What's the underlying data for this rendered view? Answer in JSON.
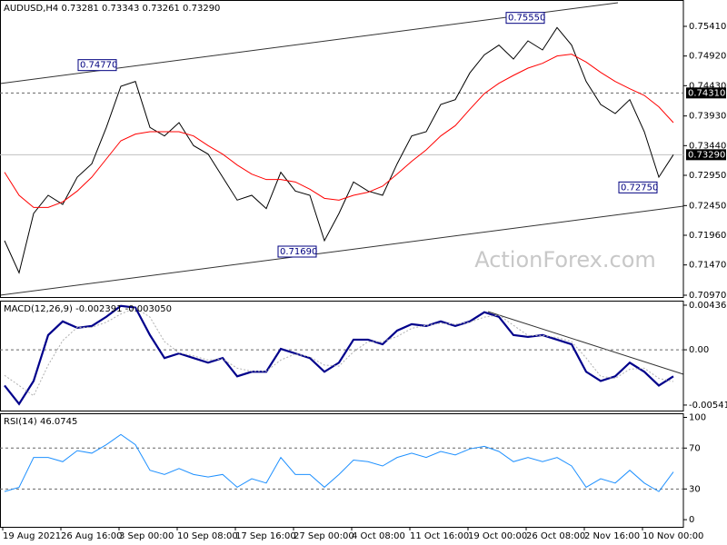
{
  "chart_data": [
    {
      "type": "line",
      "title": "AUDUSD,H4 0.73281 0.73343 0.73261 0.73290",
      "watermark": "ActionForex.com",
      "ylim": [
        0.7094,
        0.75845
      ],
      "yticks": [
        {
          "value": 0.7541,
          "label": "0.75410"
        },
        {
          "value": 0.7492,
          "label": "0.74920"
        },
        {
          "value": 0.7443,
          "label": "0.74430"
        },
        {
          "value": 0.7393,
          "label": "0.73930"
        },
        {
          "value": 0.7344,
          "label": "0.73440"
        },
        {
          "value": 0.7295,
          "label": "0.72950"
        },
        {
          "value": 0.7245,
          "label": "0.72450"
        },
        {
          "value": 0.7196,
          "label": "0.71960"
        },
        {
          "value": 0.7147,
          "label": "0.71470"
        },
        {
          "value": 0.7097,
          "label": "0.70970"
        }
      ],
      "levels": [
        {
          "value": 0.7431,
          "label": "0.74310"
        }
      ],
      "current": {
        "value": 0.7329,
        "label": "0.73290"
      },
      "annotations": [
        {
          "value": 0.7477,
          "label": "0.74770"
        },
        {
          "value": 0.7555,
          "label": "0.75550"
        },
        {
          "value": 0.7169,
          "label": "0.71690"
        },
        {
          "value": 0.7275,
          "label": "0.72750"
        }
      ],
      "series": [
        {
          "color": "#000000",
          "values": [
            0.7187,
            0.7134,
            0.7232,
            0.7262,
            0.7247,
            0.7292,
            0.7314,
            0.7374,
            0.7442,
            0.745,
            0.7374,
            0.736,
            0.7382,
            0.7344,
            0.733,
            0.7292,
            0.7254,
            0.7262,
            0.724,
            0.73,
            0.7269,
            0.7262,
            0.7187,
            0.7232,
            0.7284,
            0.7269,
            0.7262,
            0.7314,
            0.736,
            0.7367,
            0.7412,
            0.742,
            0.7464,
            0.7494,
            0.751,
            0.7487,
            0.7517,
            0.7502,
            0.7539,
            0.751,
            0.745,
            0.7412,
            0.7397,
            0.742,
            0.7367,
            0.7292,
            0.7329
          ]
        },
        {
          "color": "#ff0000",
          "values": [
            0.73,
            0.7262,
            0.7242,
            0.7242,
            0.7251,
            0.7269,
            0.7292,
            0.7322,
            0.7352,
            0.7363,
            0.7367,
            0.7367,
            0.7367,
            0.736,
            0.7344,
            0.733,
            0.7312,
            0.7297,
            0.7288,
            0.7288,
            0.7284,
            0.7272,
            0.7257,
            0.7254,
            0.7262,
            0.7267,
            0.7277,
            0.7297,
            0.7318,
            0.7337,
            0.736,
            0.7377,
            0.7404,
            0.743,
            0.7447,
            0.746,
            0.7472,
            0.748,
            0.7492,
            0.7495,
            0.7482,
            0.7465,
            0.745,
            0.7438,
            0.7427,
            0.7408,
            0.7382
          ]
        }
      ]
    },
    {
      "type": "line",
      "title": "MACD(12,26,9) -0.002391 -0.003050",
      "ylim": [
        -0.00595,
        0.00481
      ],
      "yticks": [
        {
          "value": 0.004367,
          "label": "0.004367"
        },
        {
          "value": 0,
          "label": "0.00"
        },
        {
          "value": -0.005411,
          "label": "-0.005411"
        }
      ],
      "levels": [
        0
      ],
      "series": [
        {
          "color": "#00008b",
          "values": [
            -0.0035,
            -0.0053,
            -0.00305,
            0.00144,
            0.00278,
            0.00215,
            0.00233,
            0.00323,
            0.0043,
            0.00413,
            0.00144,
            -0.00081,
            -0.00036,
            -0.00081,
            -0.00126,
            -0.00081,
            -0.0026,
            -0.00215,
            -0.00215,
            9e-05,
            -0.00036,
            -0.00081,
            -0.00215,
            -0.00126,
            0.00099,
            0.00099,
            0.00054,
            0.00188,
            0.00251,
            0.00233,
            0.00278,
            0.00233,
            0.00278,
            0.00368,
            0.00323,
            0.00144,
            0.00126,
            0.00144,
            0.00099,
            0.00054,
            -0.00215,
            -0.00305,
            -0.0026,
            -0.00126,
            -0.00215,
            -0.0035,
            -0.0026
          ]
        },
        {
          "color": "#b0b0b0",
          "values": [
            -0.0025,
            -0.0035,
            -0.0045,
            -0.0015,
            0.0009,
            0.0022,
            0.0022,
            0.0027,
            0.0035,
            0.0041,
            0.0032,
            0.0008,
            -0.0003,
            -0.0006,
            -0.001,
            -0.0009,
            -0.0018,
            -0.0021,
            -0.0021,
            -0.001,
            -0.0004,
            -0.0007,
            -0.0015,
            -0.0016,
            -0.0002,
            0.0008,
            0.0008,
            0.0013,
            0.0021,
            0.0024,
            0.0026,
            0.0025,
            0.0027,
            0.0032,
            0.0034,
            0.0024,
            0.0014,
            0.0014,
            0.0012,
            0.0008,
            -0.0008,
            -0.0026,
            -0.0028,
            -0.0019,
            -0.0018,
            -0.0028,
            -0.0031
          ]
        }
      ]
    },
    {
      "type": "line",
      "title": "RSI(14) 46.0745",
      "ylim": [
        -7,
        104
      ],
      "yticks": [
        100,
        70,
        30,
        0
      ],
      "levels": [
        70,
        30
      ],
      "categories": [
        null,
        "19 Aug 2021",
        null,
        null,
        null,
        "26 Aug 16:00",
        null,
        null,
        null,
        "3 Sep 00:00",
        null,
        null,
        null,
        "10 Sep 08:00",
        null,
        null,
        null,
        "17 Sep 16:00",
        null,
        null,
        null,
        "27 Sep 00:00",
        null,
        null,
        null,
        "4 Oct 08:00",
        null,
        null,
        null,
        "11 Oct 16:00",
        null,
        null,
        null,
        "19 Oct 00:00",
        null,
        null,
        null,
        "26 Oct 08:00",
        null,
        null,
        null,
        "2 Nov 16:00",
        null,
        null,
        null,
        "10 Nov 00:00",
        null
      ],
      "series": [
        {
          "color": "#1e90ff",
          "values": [
            27.5,
            31.7,
            60.8,
            60.8,
            56.7,
            67.5,
            65,
            73.3,
            83.3,
            73.3,
            48.3,
            44.2,
            50,
            44.2,
            41.7,
            44.2,
            31.7,
            40,
            35.8,
            60.8,
            44.2,
            44.2,
            31.7,
            44.2,
            58.3,
            56.7,
            52.5,
            60.8,
            65,
            60.8,
            66.7,
            63.3,
            69.2,
            71.7,
            66.7,
            56.7,
            60.8,
            56.7,
            60.8,
            52.5,
            31.7,
            40,
            35.8,
            48.3,
            35.8,
            27.5,
            46.7
          ]
        }
      ]
    }
  ]
}
